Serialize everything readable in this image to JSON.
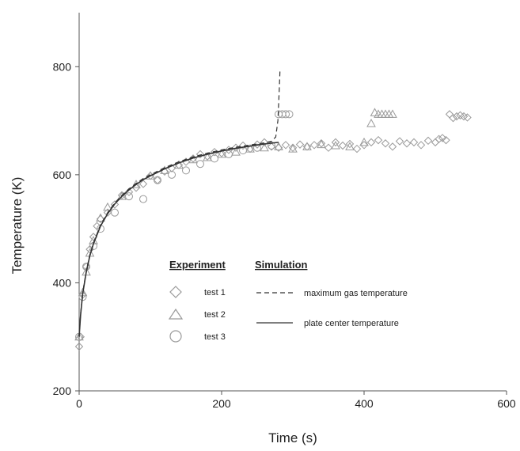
{
  "chart_data": {
    "type": "scatter",
    "xlabel": "Time (s)",
    "ylabel": "Temperature (K)",
    "xlim": [
      0,
      600
    ],
    "ylim": [
      200,
      900
    ],
    "xticks": [
      0,
      200,
      400,
      600
    ],
    "yticks": [
      200,
      400,
      600,
      800
    ],
    "grid": false,
    "legend": {
      "placement": "center-left",
      "experiment_heading": "Experiment",
      "simulation_heading": "Simulation",
      "experiment_entries": [
        {
          "label": "test 1",
          "marker": "diamond"
        },
        {
          "label": "test 2",
          "marker": "triangle"
        },
        {
          "label": "test 3",
          "marker": "circle"
        }
      ],
      "simulation_entries": [
        {
          "label": "maximum gas temperature",
          "style": "dashed"
        },
        {
          "label": "plate center temperature",
          "style": "solid"
        }
      ]
    },
    "marker_color": "#9a9a9a",
    "line_color": "#333333",
    "series": [
      {
        "name": "test 1",
        "marker": "diamond",
        "x": [
          0,
          2,
          5,
          10,
          15,
          20,
          25,
          30,
          40,
          50,
          60,
          70,
          80,
          90,
          100,
          110,
          120,
          130,
          140,
          150,
          160,
          170,
          180,
          190,
          200,
          210,
          220,
          230,
          240,
          250,
          260,
          270,
          280,
          290,
          300,
          310,
          320,
          330,
          340,
          350,
          360,
          370,
          380,
          390,
          400,
          410,
          420,
          430,
          440,
          450,
          460,
          470,
          480,
          490,
          500,
          505,
          510,
          515,
          520,
          525,
          530,
          535,
          540,
          545
        ],
        "y": [
          282,
          300,
          378,
          430,
          462,
          485,
          505,
          518,
          530,
          545,
          562,
          568,
          576,
          583,
          598,
          590,
          606,
          612,
          618,
          624,
          630,
          638,
          634,
          642,
          640,
          646,
          650,
          654,
          648,
          656,
          660,
          652,
          650,
          655,
          650,
          656,
          652,
          655,
          658,
          650,
          660,
          654,
          657,
          648,
          655,
          660,
          664,
          658,
          652,
          662,
          658,
          660,
          655,
          663,
          660,
          666,
          668,
          664,
          712,
          705,
          708,
          710,
          708,
          706
        ]
      },
      {
        "name": "test 2",
        "marker": "triangle",
        "x": [
          0,
          5,
          10,
          15,
          20,
          30,
          40,
          60,
          80,
          100,
          120,
          140,
          160,
          180,
          200,
          220,
          240,
          260,
          280,
          300,
          320,
          340,
          360,
          380,
          400,
          410,
          415,
          420,
          425,
          430,
          435,
          440
        ],
        "y": [
          300,
          382,
          420,
          455,
          478,
          520,
          540,
          560,
          582,
          598,
          608,
          618,
          628,
          632,
          638,
          642,
          648,
          650,
          652,
          648,
          652,
          656,
          654,
          652,
          660,
          695,
          715,
          712,
          712,
          712,
          712,
          712
        ]
      },
      {
        "name": "test 3",
        "marker": "circle",
        "x": [
          0,
          5,
          10,
          20,
          30,
          50,
          70,
          90,
          110,
          130,
          150,
          170,
          190,
          210,
          230,
          250,
          270,
          280,
          285,
          290,
          295
        ],
        "y": [
          300,
          374,
          430,
          468,
          500,
          530,
          560,
          555,
          590,
          600,
          608,
          620,
          630,
          638,
          645,
          650,
          654,
          712,
          712,
          712,
          712
        ]
      }
    ],
    "lines": [
      {
        "name": "plate center temperature",
        "style": "solid",
        "x": [
          0,
          2,
          5,
          10,
          15,
          20,
          30,
          40,
          50,
          60,
          70,
          80,
          90,
          100,
          120,
          140,
          160,
          180,
          200,
          220,
          240,
          260,
          280
        ],
        "y": [
          300,
          340,
          380,
          420,
          450,
          472,
          505,
          528,
          546,
          560,
          572,
          582,
          591,
          598,
          611,
          622,
          631,
          638,
          644,
          649,
          653,
          657,
          660
        ]
      },
      {
        "name": "maximum gas temperature",
        "style": "dashed",
        "x": [
          0,
          2,
          5,
          10,
          15,
          20,
          30,
          40,
          50,
          60,
          70,
          80,
          90,
          100,
          120,
          140,
          160,
          180,
          200,
          220,
          240,
          260,
          270,
          276,
          279,
          281,
          282
        ],
        "y": [
          300,
          342,
          382,
          422,
          452,
          474,
          507,
          530,
          548,
          562,
          574,
          584,
          593,
          600,
          613,
          624,
          633,
          640,
          646,
          651,
          655,
          659,
          662,
          670,
          700,
          760,
          795
        ]
      }
    ]
  }
}
